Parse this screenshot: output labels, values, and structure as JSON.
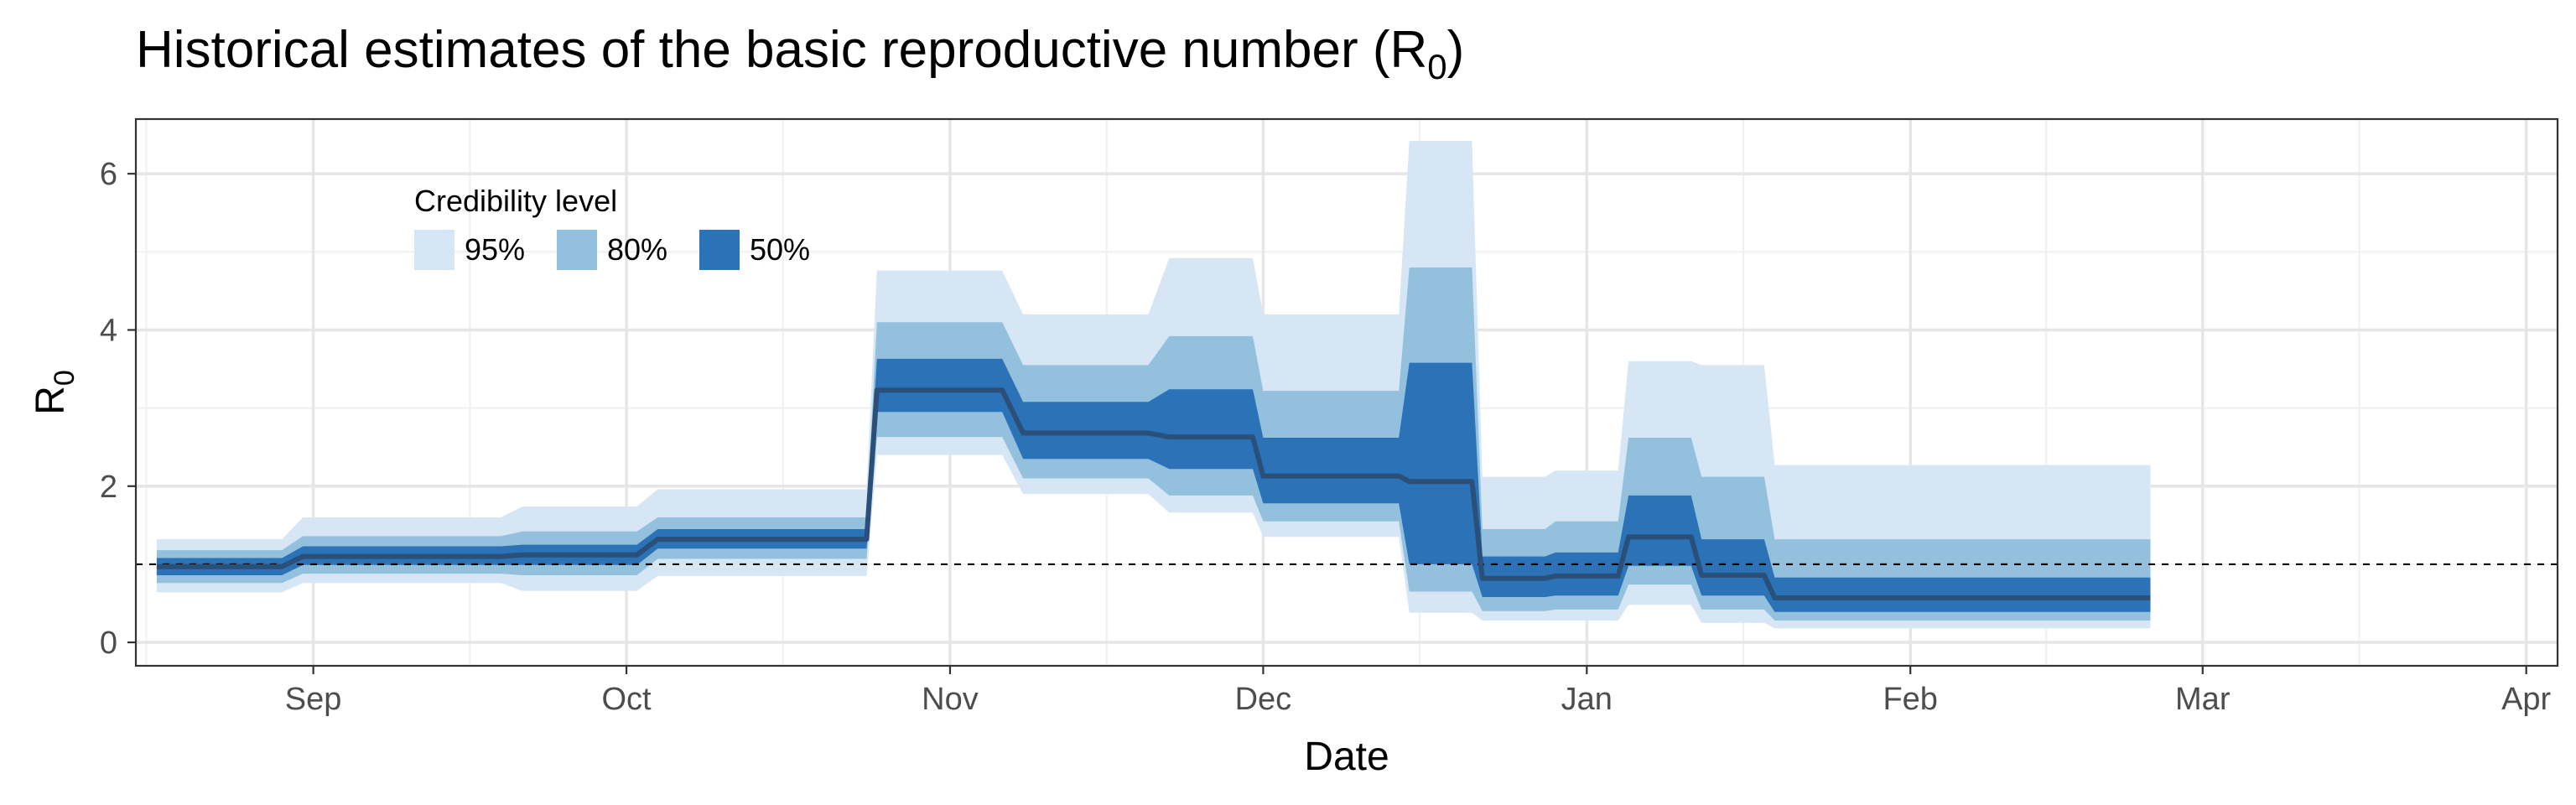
{
  "chart_data": {
    "type": "area",
    "title_main": "Historical estimates of the basic reproductive number (R",
    "title_sub": "0",
    "title_close": ")",
    "xlabel": "Date",
    "ylabel_main": "R",
    "ylabel_sub": "0",
    "x_range": [
      "2021-08-15",
      "2022-04-04"
    ],
    "y_range": [
      -0.3,
      6.7
    ],
    "y_ticks": [
      0,
      2,
      4,
      6
    ],
    "x_ticks": [
      {
        "date": "2021-09-01",
        "label": "Sep"
      },
      {
        "date": "2021-10-01",
        "label": "Oct"
      },
      {
        "date": "2021-11-01",
        "label": "Nov"
      },
      {
        "date": "2021-12-01",
        "label": "Dec"
      },
      {
        "date": "2022-01-01",
        "label": "Jan"
      },
      {
        "date": "2022-02-01",
        "label": "Feb"
      },
      {
        "date": "2022-03-01",
        "label": "Mar"
      },
      {
        "date": "2022-04-01",
        "label": "Apr"
      }
    ],
    "x_minor_ticks": [
      "2021-08-16",
      "2021-09-16",
      "2021-10-16",
      "2021-11-16",
      "2021-12-16",
      "2022-01-16",
      "2022-02-14",
      "2022-03-16"
    ],
    "grid": true,
    "reference_line": {
      "y": 1,
      "style": "dashed"
    },
    "legend": {
      "title": "Credibility level",
      "placement": "top-left",
      "items": [
        {
          "label": "95%",
          "color": "#d6e6f5"
        },
        {
          "label": "80%",
          "color": "#92c0dd"
        },
        {
          "label": "50%",
          "color": "#2b72b6"
        }
      ]
    },
    "colors": {
      "ci95": "#d6e6f5",
      "ci80": "#92c0dd",
      "ci50": "#2b72b6",
      "median": "#2a4f78"
    },
    "series": [
      {
        "date": "2021-08-17",
        "median": 0.97,
        "lo50": 0.86,
        "hi50": 1.08,
        "lo80": 0.76,
        "hi80": 1.18,
        "lo95": 0.64,
        "hi95": 1.32
      },
      {
        "date": "2021-08-29",
        "median": 0.97,
        "lo50": 0.86,
        "hi50": 1.08,
        "lo80": 0.76,
        "hi80": 1.18,
        "lo95": 0.64,
        "hi95": 1.32
      },
      {
        "date": "2021-08-31",
        "median": 1.1,
        "lo50": 0.99,
        "hi50": 1.23,
        "lo80": 0.88,
        "hi80": 1.36,
        "lo95": 0.76,
        "hi95": 1.6
      },
      {
        "date": "2021-09-19",
        "median": 1.1,
        "lo50": 0.99,
        "hi50": 1.23,
        "lo80": 0.88,
        "hi80": 1.36,
        "lo95": 0.76,
        "hi95": 1.6
      },
      {
        "date": "2021-09-21",
        "median": 1.12,
        "lo50": 0.99,
        "hi50": 1.25,
        "lo80": 0.86,
        "hi80": 1.42,
        "lo95": 0.66,
        "hi95": 1.74
      },
      {
        "date": "2021-10-02",
        "median": 1.12,
        "lo50": 0.99,
        "hi50": 1.25,
        "lo80": 0.86,
        "hi80": 1.42,
        "lo95": 0.66,
        "hi95": 1.74
      },
      {
        "date": "2021-10-04",
        "median": 1.32,
        "lo50": 1.2,
        "hi50": 1.45,
        "lo80": 1.07,
        "hi80": 1.6,
        "lo95": 0.85,
        "hi95": 1.96
      },
      {
        "date": "2021-10-24",
        "median": 1.32,
        "lo50": 1.2,
        "hi50": 1.45,
        "lo80": 1.07,
        "hi80": 1.6,
        "lo95": 0.85,
        "hi95": 1.96
      },
      {
        "date": "2021-10-25",
        "median": 3.23,
        "lo50": 2.95,
        "hi50": 3.63,
        "lo80": 2.63,
        "hi80": 4.1,
        "lo95": 2.4,
        "hi95": 4.76
      },
      {
        "date": "2021-11-06",
        "median": 3.23,
        "lo50": 2.95,
        "hi50": 3.63,
        "lo80": 2.63,
        "hi80": 4.1,
        "lo95": 2.4,
        "hi95": 4.76
      },
      {
        "date": "2021-11-08",
        "median": 2.68,
        "lo50": 2.35,
        "hi50": 3.08,
        "lo80": 2.1,
        "hi80": 3.55,
        "lo95": 1.9,
        "hi95": 4.2
      },
      {
        "date": "2021-11-20",
        "median": 2.68,
        "lo50": 2.35,
        "hi50": 3.08,
        "lo80": 2.1,
        "hi80": 3.55,
        "lo95": 1.9,
        "hi95": 4.2
      },
      {
        "date": "2021-11-22",
        "median": 2.63,
        "lo50": 2.22,
        "hi50": 3.24,
        "lo80": 1.88,
        "hi80": 3.92,
        "lo95": 1.66,
        "hi95": 4.92
      },
      {
        "date": "2021-11-30",
        "median": 2.63,
        "lo50": 2.22,
        "hi50": 3.24,
        "lo80": 1.88,
        "hi80": 3.92,
        "lo95": 1.66,
        "hi95": 4.92
      },
      {
        "date": "2021-12-01",
        "median": 2.13,
        "lo50": 1.78,
        "hi50": 2.62,
        "lo80": 1.55,
        "hi80": 3.22,
        "lo95": 1.35,
        "hi95": 4.2
      },
      {
        "date": "2021-12-14",
        "median": 2.13,
        "lo50": 1.78,
        "hi50": 2.62,
        "lo80": 1.55,
        "hi80": 3.22,
        "lo95": 1.35,
        "hi95": 4.2
      },
      {
        "date": "2021-12-15",
        "median": 2.06,
        "lo50": 1.0,
        "hi50": 3.58,
        "lo80": 0.65,
        "hi80": 4.8,
        "lo95": 0.38,
        "hi95": 6.42
      },
      {
        "date": "2021-12-21",
        "median": 2.06,
        "lo50": 1.0,
        "hi50": 3.58,
        "lo80": 0.65,
        "hi80": 4.8,
        "lo95": 0.38,
        "hi95": 6.42
      },
      {
        "date": "2021-12-22",
        "median": 0.82,
        "lo50": 0.58,
        "hi50": 1.1,
        "lo80": 0.4,
        "hi80": 1.45,
        "lo95": 0.28,
        "hi95": 2.12
      },
      {
        "date": "2021-12-28",
        "median": 0.82,
        "lo50": 0.58,
        "hi50": 1.1,
        "lo80": 0.4,
        "hi80": 1.45,
        "lo95": 0.28,
        "hi95": 2.12
      },
      {
        "date": "2021-12-29",
        "median": 0.85,
        "lo50": 0.6,
        "hi50": 1.15,
        "lo80": 0.42,
        "hi80": 1.55,
        "lo95": 0.28,
        "hi95": 2.2
      },
      {
        "date": "2022-01-04",
        "median": 0.85,
        "lo50": 0.6,
        "hi50": 1.15,
        "lo80": 0.42,
        "hi80": 1.55,
        "lo95": 0.28,
        "hi95": 2.2
      },
      {
        "date": "2022-01-05",
        "median": 1.35,
        "lo50": 0.98,
        "hi50": 1.88,
        "lo80": 0.74,
        "hi80": 2.62,
        "lo95": 0.48,
        "hi95": 3.6
      },
      {
        "date": "2022-01-11",
        "median": 1.35,
        "lo50": 0.98,
        "hi50": 1.88,
        "lo80": 0.74,
        "hi80": 2.62,
        "lo95": 0.48,
        "hi95": 3.6
      },
      {
        "date": "2022-01-12",
        "median": 0.86,
        "lo50": 0.6,
        "hi50": 1.32,
        "lo80": 0.42,
        "hi80": 2.12,
        "lo95": 0.25,
        "hi95": 3.55
      },
      {
        "date": "2022-01-18",
        "median": 0.86,
        "lo50": 0.6,
        "hi50": 1.32,
        "lo80": 0.42,
        "hi80": 2.12,
        "lo95": 0.25,
        "hi95": 3.55
      },
      {
        "date": "2022-01-19",
        "median": 0.57,
        "lo50": 0.39,
        "hi50": 0.83,
        "lo80": 0.28,
        "hi80": 1.32,
        "lo95": 0.18,
        "hi95": 2.27
      },
      {
        "date": "2022-02-24",
        "median": 0.57,
        "lo50": 0.39,
        "hi50": 0.83,
        "lo80": 0.28,
        "hi80": 1.32,
        "lo95": 0.18,
        "hi95": 2.27
      }
    ]
  }
}
